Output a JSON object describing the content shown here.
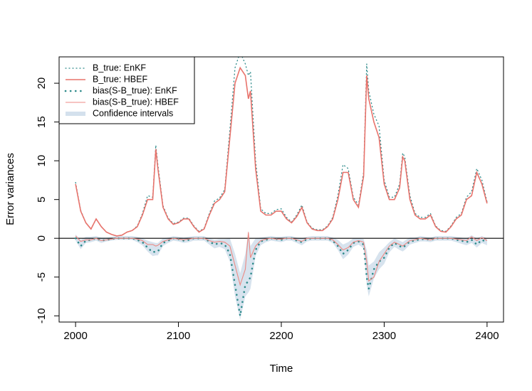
{
  "chart_data": {
    "type": "line",
    "xlabel": "Time",
    "ylabel": "Error variances",
    "xlim": [
      1984,
      2416
    ],
    "ylim": [
      -10.8,
      23.4
    ],
    "xticks": [
      2000,
      2100,
      2200,
      2300,
      2400
    ],
    "yticks": [
      -10,
      -5,
      0,
      5,
      10,
      15,
      20
    ],
    "reference_line": 0,
    "legend": "top-left",
    "x": [
      2000,
      2005,
      2010,
      2015,
      2020,
      2025,
      2030,
      2035,
      2040,
      2045,
      2050,
      2055,
      2060,
      2065,
      2070,
      2075,
      2078,
      2080,
      2085,
      2090,
      2095,
      2100,
      2105,
      2110,
      2115,
      2120,
      2125,
      2130,
      2135,
      2140,
      2145,
      2150,
      2155,
      2160,
      2165,
      2168,
      2170,
      2175,
      2180,
      2185,
      2190,
      2195,
      2200,
      2205,
      2210,
      2215,
      2220,
      2225,
      2230,
      2235,
      2240,
      2245,
      2250,
      2255,
      2260,
      2265,
      2270,
      2275,
      2280,
      2283,
      2285,
      2290,
      2295,
      2300,
      2305,
      2310,
      2315,
      2318,
      2320,
      2325,
      2330,
      2335,
      2340,
      2345,
      2350,
      2355,
      2360,
      2365,
      2370,
      2375,
      2380,
      2385,
      2390,
      2395,
      2400
    ],
    "series": [
      {
        "name": "B_true: EnKF",
        "color": "#2e8b8b",
        "style": "dotted",
        "values": [
          7.2,
          3.6,
          2,
          1.2,
          2.5,
          1.5,
          0.8,
          0.5,
          0.3,
          0.4,
          0.8,
          1,
          1.6,
          3.2,
          5.5,
          5.3,
          12,
          9.5,
          4.2,
          2.6,
          1.9,
          2.1,
          2.6,
          2.6,
          1.6,
          0.9,
          1.3,
          3.2,
          4.8,
          5.2,
          6.3,
          14,
          22,
          24,
          22.5,
          21,
          21.5,
          10,
          3.8,
          3.2,
          3.2,
          3.7,
          3.8,
          2.7,
          2.1,
          3,
          4.3,
          2.1,
          1.3,
          1.1,
          1.1,
          1.6,
          2.7,
          5.5,
          9.5,
          9,
          5.3,
          4.3,
          8.5,
          22.5,
          19,
          16,
          14.5,
          7.5,
          5.3,
          5.3,
          7,
          11,
          10.5,
          5.5,
          3.2,
          2.7,
          2.7,
          3.2,
          1.6,
          1,
          0.9,
          1.6,
          2.7,
          3.2,
          5.3,
          6,
          9,
          7.5,
          4.7
        ]
      },
      {
        "name": "B_true: HBEF",
        "color": "#e8736c",
        "style": "solid",
        "values": [
          7,
          3.5,
          2,
          1.2,
          2.5,
          1.5,
          0.8,
          0.5,
          0.3,
          0.4,
          0.8,
          1,
          1.5,
          3,
          5,
          5,
          11.5,
          9,
          4,
          2.5,
          1.8,
          2,
          2.5,
          2.5,
          1.5,
          0.8,
          1.2,
          3,
          4.5,
          5,
          6,
          13,
          20,
          22,
          21,
          18,
          19,
          9,
          3.5,
          3,
          3,
          3.5,
          3.5,
          2.5,
          2,
          2.8,
          4,
          2,
          1.2,
          1,
          1,
          1.5,
          2.5,
          5,
          8.5,
          8.5,
          5,
          4,
          8,
          21,
          18,
          15,
          13,
          7,
          5,
          5,
          6.5,
          10.5,
          10,
          5,
          3,
          2.5,
          2.5,
          3,
          1.5,
          0.9,
          0.8,
          1.5,
          2.5,
          3,
          5,
          5.5,
          8.5,
          7,
          4.5
        ]
      },
      {
        "name": "bias(S-B_true): EnKF",
        "color": "#2e8b8b",
        "style": "dots",
        "values": [
          0,
          -1,
          -0.3,
          -0.2,
          0,
          -0.3,
          -0.2,
          -0.1,
          0,
          0,
          0,
          0,
          -0.2,
          -0.5,
          -1.2,
          -1.8,
          -1.7,
          -1.7,
          -0.6,
          -0.3,
          0,
          -0.1,
          -0.3,
          -0.2,
          0,
          0,
          0,
          -0.4,
          -0.8,
          -0.6,
          -0.8,
          -2,
          -6,
          -10,
          -6,
          -5.5,
          -5,
          -1.5,
          -0.4,
          -0.2,
          0,
          -0.1,
          -0.2,
          0,
          0,
          -0.3,
          -0.5,
          -0.1,
          0,
          0,
          0,
          0,
          -0.3,
          -1,
          -2,
          -1.5,
          -0.6,
          -0.4,
          -0.8,
          -5,
          -6.5,
          -4,
          -3,
          -2.5,
          -1.2,
          -0.6,
          -1,
          -1.2,
          -1,
          -0.4,
          -0.3,
          -0.1,
          -0.1,
          -0.2,
          0,
          0,
          0,
          0,
          -0.2,
          -0.3,
          -0.5,
          -0.2,
          -0.8,
          -0.2,
          -0.5
        ]
      },
      {
        "name": "bias(S-B_true): HBEF",
        "color": "#ec8a84",
        "style": "thin",
        "values": [
          0.3,
          -0.4,
          -0.2,
          -0.2,
          0,
          -0.3,
          -0.2,
          -0.1,
          0,
          0,
          0,
          0,
          -0.1,
          -0.3,
          -0.8,
          -0.8,
          -1,
          -0.9,
          -0.4,
          -0.2,
          0,
          -0.1,
          -0.2,
          -0.1,
          0,
          0,
          0,
          -0.3,
          -0.5,
          -0.4,
          -0.5,
          -1,
          -3.5,
          -6,
          -4,
          0.8,
          -2.5,
          -1,
          -0.3,
          -0.1,
          0,
          -0.1,
          -0.1,
          0,
          0,
          -0.2,
          -0.4,
          0,
          0,
          0,
          0,
          0,
          -0.2,
          -0.8,
          -1.5,
          -1.2,
          -0.5,
          -0.3,
          -0.5,
          -3,
          -5.5,
          -5,
          -3,
          -2,
          -1,
          -0.5,
          -0.8,
          -1,
          -0.8,
          -0.3,
          -0.2,
          0,
          -0.1,
          -0.2,
          0,
          0,
          0,
          0,
          -0.1,
          -0.2,
          -0.3,
          0.2,
          -0.3,
          0.1,
          -0.3
        ]
      },
      {
        "name": "Confidence intervals",
        "color": "#c9d9e8",
        "style": "band",
        "lower": [
          -0.3,
          -1.4,
          -0.6,
          -0.5,
          -0.3,
          -0.6,
          -0.4,
          -0.3,
          -0.2,
          -0.2,
          -0.2,
          -0.2,
          -0.5,
          -0.9,
          -1.7,
          -2.3,
          -2.2,
          -2.2,
          -1,
          -0.6,
          -0.3,
          -0.4,
          -0.6,
          -0.5,
          -0.3,
          -0.3,
          -0.3,
          -0.8,
          -1.3,
          -1.1,
          -1.4,
          -3,
          -7.5,
          -10.5,
          -7.5,
          -7,
          -6.5,
          -2.3,
          -0.9,
          -0.5,
          -0.3,
          -0.4,
          -0.5,
          -0.3,
          -0.3,
          -0.6,
          -0.9,
          -0.4,
          -0.3,
          -0.3,
          -0.3,
          -0.3,
          -0.6,
          -1.5,
          -2.7,
          -2.1,
          -1.1,
          -0.8,
          -1.3,
          -6,
          -7.5,
          -5.2,
          -4,
          -3.3,
          -1.8,
          -1.1,
          -1.5,
          -1.7,
          -1.5,
          -0.8,
          -0.6,
          -0.4,
          -0.4,
          -0.5,
          -0.3,
          -0.3,
          -0.3,
          -0.3,
          -0.5,
          -0.7,
          -0.9,
          -0.6,
          -1.2,
          -0.6,
          -0.9
        ],
        "upper": [
          0.5,
          -0.2,
          0.2,
          0.2,
          0.3,
          0.1,
          0.1,
          0.2,
          0.3,
          0.3,
          0.3,
          0.3,
          0.2,
          0,
          -0.3,
          -0.5,
          -0.6,
          -0.6,
          0,
          0.1,
          0.3,
          0.2,
          0.1,
          0.2,
          0.3,
          0.3,
          0.3,
          0,
          -0.2,
          -0.1,
          -0.1,
          0,
          -2,
          -4.5,
          -2,
          1,
          -1,
          0,
          0.1,
          0.2,
          0.3,
          0.2,
          0.2,
          0.3,
          0.3,
          0.1,
          0,
          0.2,
          0.3,
          0.3,
          0.3,
          0.3,
          0.1,
          -0.2,
          -0.8,
          -0.5,
          0,
          0,
          -0.1,
          -1.5,
          -3.5,
          -3,
          -1.8,
          -1.2,
          -0.5,
          0,
          -0.3,
          -0.5,
          -0.3,
          0.1,
          0.1,
          0.3,
          0.2,
          0.1,
          0.3,
          0.3,
          0.3,
          0.3,
          0.2,
          0.1,
          0,
          0.4,
          0,
          0.3,
          0
        ]
      }
    ]
  }
}
